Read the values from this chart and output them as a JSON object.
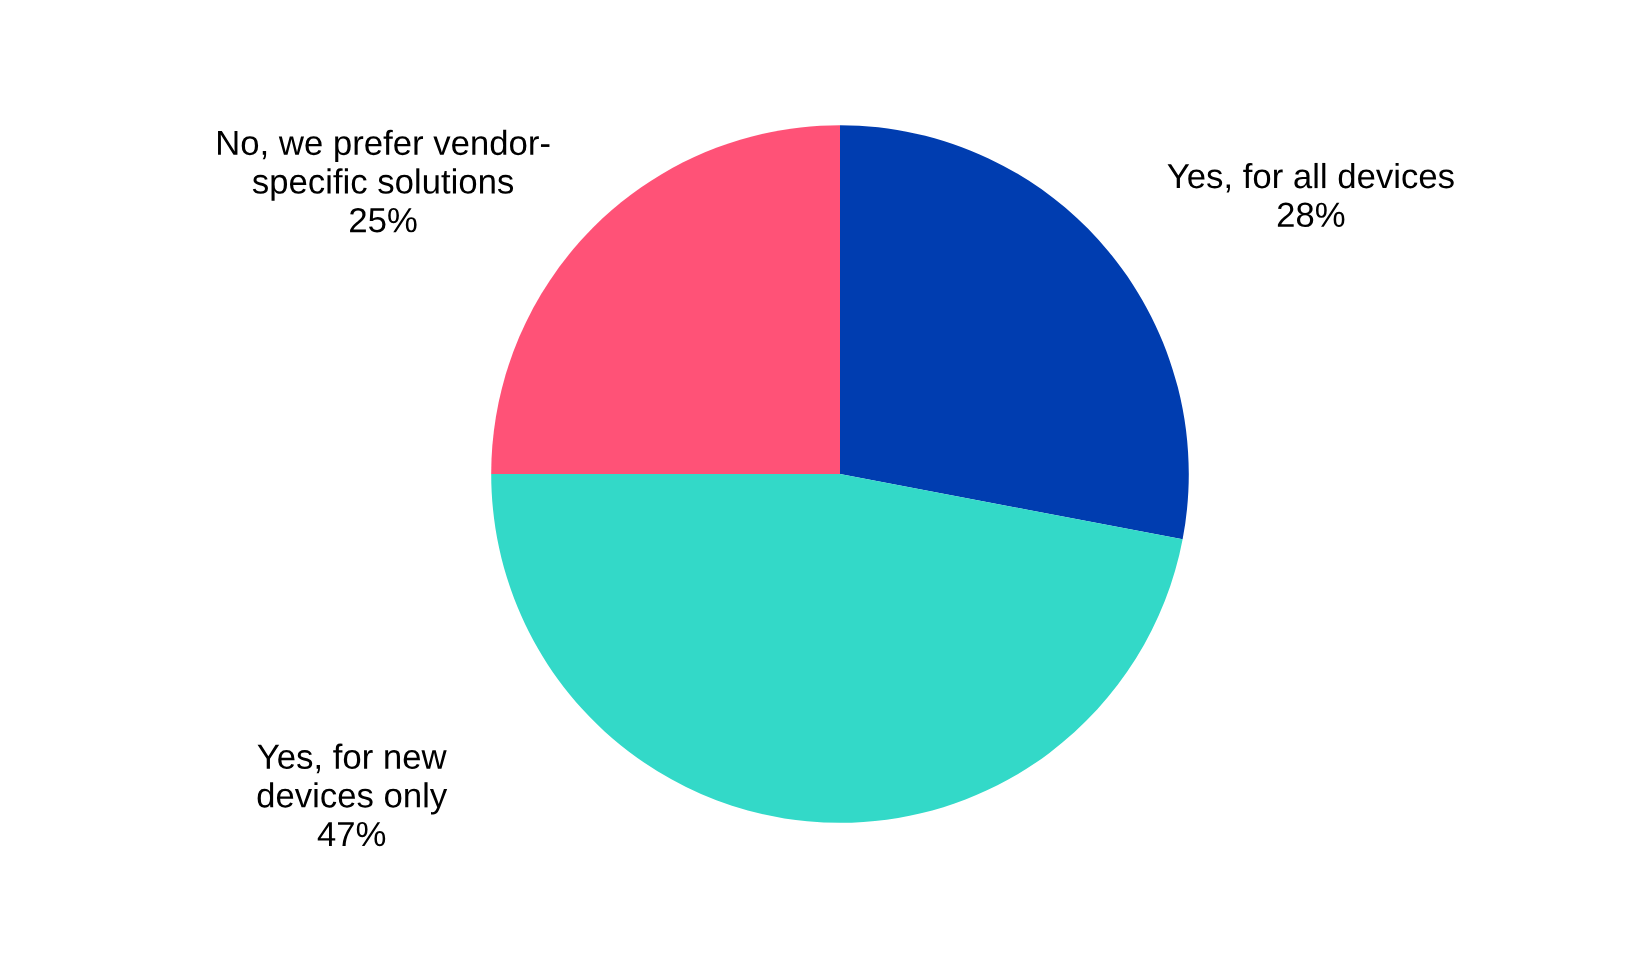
{
  "chart_data": {
    "type": "pie",
    "categories": [
      "Yes, for all devices",
      "Yes, for new\ndevices only",
      "No, we prefer vendor-\nspecific solutions"
    ],
    "values": [
      28,
      47,
      25
    ],
    "value_labels": [
      "28%",
      "47%",
      "25%"
    ],
    "colors": [
      "#003db0",
      "#33d9c8",
      "#ff5277"
    ],
    "legend": false
  }
}
